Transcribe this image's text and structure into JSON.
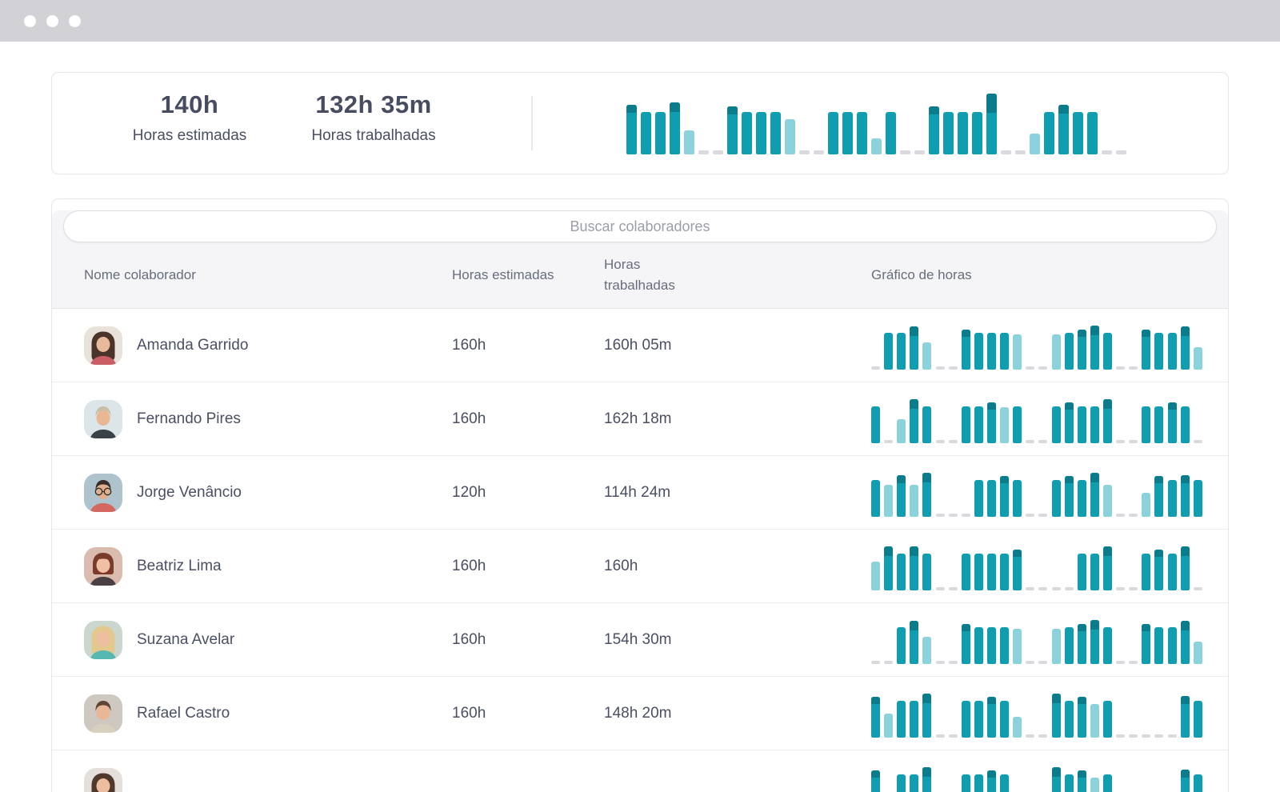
{
  "window": {
    "dot_count": 3
  },
  "colors": {
    "teal": "#0E9EB0",
    "dark": "#0A7C8C",
    "light": "#8CD2DC",
    "dash": "#D9D9DE"
  },
  "summary": {
    "stats": [
      {
        "value": "140h",
        "label": "Horas estimadas"
      },
      {
        "value": "132h 35m",
        "label": "Horas trabalhadas"
      }
    ],
    "chart": {
      "type": "bar",
      "bars": [
        [
          "o",
          62,
          10
        ],
        [
          "n",
          53
        ],
        [
          "n",
          53
        ],
        [
          "o",
          65,
          12
        ],
        [
          "l",
          30
        ],
        [
          "d"
        ],
        [
          "d"
        ],
        [
          "o",
          60,
          10
        ],
        [
          "n",
          53
        ],
        [
          "n",
          53
        ],
        [
          "n",
          53
        ],
        [
          "l",
          44
        ],
        [
          "d"
        ],
        [
          "d"
        ],
        [
          "n",
          53
        ],
        [
          "n",
          53
        ],
        [
          "n",
          53
        ],
        [
          "l",
          20
        ],
        [
          "n",
          53
        ],
        [
          "d"
        ],
        [
          "d"
        ],
        [
          "o",
          60,
          10
        ],
        [
          "n",
          53
        ],
        [
          "n",
          53
        ],
        [
          "n",
          53
        ],
        [
          "o",
          76,
          24
        ],
        [
          "d"
        ],
        [
          "d"
        ],
        [
          "l",
          26
        ],
        [
          "n",
          53
        ],
        [
          "o",
          62,
          11
        ],
        [
          "n",
          53
        ],
        [
          "n",
          53
        ],
        [
          "d"
        ],
        [
          "d"
        ]
      ]
    }
  },
  "search": {
    "placeholder": "Buscar colaboradores"
  },
  "table": {
    "columns": [
      "Nome colaborador",
      "Horas estimadas",
      "Horas trabalhadas",
      "Gráfico de horas"
    ],
    "rows": [
      {
        "name": "Amanda Garrido",
        "estimated": "160h",
        "worked": "160h 05m",
        "avatar": {
          "bg": "#E9E2DB",
          "hair": "#4A3328",
          "skin": "#E8B99B",
          "shirt": "#C95E66",
          "style": "long",
          "glasses": false
        },
        "chart": [
          [
            "d"
          ],
          [
            "n",
            46
          ],
          [
            "n",
            46
          ],
          [
            "o",
            54,
            12
          ],
          [
            "l",
            34
          ],
          [
            "d"
          ],
          [
            "d"
          ],
          [
            "o",
            50,
            9
          ],
          [
            "n",
            46
          ],
          [
            "n",
            46
          ],
          [
            "n",
            46
          ],
          [
            "l",
            44
          ],
          [
            "d"
          ],
          [
            "d"
          ],
          [
            "l",
            44
          ],
          [
            "n",
            46
          ],
          [
            "o",
            50,
            9
          ],
          [
            "o",
            55,
            12
          ],
          [
            "n",
            46
          ],
          [
            "d"
          ],
          [
            "d"
          ],
          [
            "o",
            50,
            9
          ],
          [
            "n",
            46
          ],
          [
            "n",
            46
          ],
          [
            "o",
            54,
            12
          ],
          [
            "l",
            28
          ]
        ]
      },
      {
        "name": "Fernando Pires",
        "estimated": "160h",
        "worked": "162h 18m",
        "avatar": {
          "bg": "#DCE6E8",
          "hair": "#C9BFA8",
          "skin": "#E9B793",
          "shirt": "#3A4149",
          "style": "short",
          "glasses": false
        },
        "chart": [
          [
            "n",
            46
          ],
          [
            "d"
          ],
          [
            "l",
            30
          ],
          [
            "o",
            55,
            12
          ],
          [
            "n",
            46
          ],
          [
            "d"
          ],
          [
            "d"
          ],
          [
            "n",
            46
          ],
          [
            "n",
            46
          ],
          [
            "o",
            51,
            9
          ],
          [
            "l",
            45
          ],
          [
            "n",
            46
          ],
          [
            "d"
          ],
          [
            "d"
          ],
          [
            "n",
            46
          ],
          [
            "o",
            51,
            9
          ],
          [
            "n",
            46
          ],
          [
            "n",
            46
          ],
          [
            "o",
            55,
            12
          ],
          [
            "d"
          ],
          [
            "d"
          ],
          [
            "n",
            46
          ],
          [
            "n",
            46
          ],
          [
            "o",
            51,
            9
          ],
          [
            "n",
            46
          ],
          [
            "d"
          ]
        ]
      },
      {
        "name": "Jorge Venâncio",
        "estimated": "120h",
        "worked": "114h 24m",
        "avatar": {
          "bg": "#AFC3CD",
          "hair": "#3A2E28",
          "skin": "#E3AE8C",
          "shirt": "#D2685E",
          "style": "short",
          "glasses": true
        },
        "chart": [
          [
            "n",
            46
          ],
          [
            "l",
            40
          ],
          [
            "o",
            52,
            10
          ],
          [
            "l",
            40
          ],
          [
            "o",
            55,
            12
          ],
          [
            "d"
          ],
          [
            "d"
          ],
          [
            "d"
          ],
          [
            "n",
            46
          ],
          [
            "n",
            46
          ],
          [
            "o",
            51,
            9
          ],
          [
            "n",
            46
          ],
          [
            "d"
          ],
          [
            "d"
          ],
          [
            "n",
            46
          ],
          [
            "o",
            51,
            9
          ],
          [
            "n",
            46
          ],
          [
            "o",
            55,
            12
          ],
          [
            "l",
            40
          ],
          [
            "d"
          ],
          [
            "d"
          ],
          [
            "l",
            30
          ],
          [
            "o",
            51,
            9
          ],
          [
            "n",
            46
          ],
          [
            "o",
            52,
            10
          ],
          [
            "n",
            46
          ]
        ]
      },
      {
        "name": "Beatriz Lima",
        "estimated": "160h",
        "worked": "160h",
        "avatar": {
          "bg": "#D9BCAD",
          "hair": "#7A3B2B",
          "skin": "#EFC0A2",
          "shirt": "#4A3F43",
          "style": "bangs",
          "glasses": false
        },
        "chart": [
          [
            "l",
            36
          ],
          [
            "o",
            55,
            12
          ],
          [
            "n",
            46
          ],
          [
            "o",
            55,
            12
          ],
          [
            "n",
            46
          ],
          [
            "d"
          ],
          [
            "d"
          ],
          [
            "n",
            46
          ],
          [
            "n",
            46
          ],
          [
            "n",
            46
          ],
          [
            "n",
            46
          ],
          [
            "o",
            51,
            9
          ],
          [
            "d"
          ],
          [
            "d"
          ],
          [
            "d"
          ],
          [
            "d"
          ],
          [
            "n",
            46
          ],
          [
            "n",
            46
          ],
          [
            "o",
            55,
            12
          ],
          [
            "d"
          ],
          [
            "d"
          ],
          [
            "n",
            46
          ],
          [
            "o",
            51,
            9
          ],
          [
            "n",
            46
          ],
          [
            "o",
            55,
            12
          ],
          [
            "d"
          ]
        ]
      },
      {
        "name": "Suzana Avelar",
        "estimated": "160h",
        "worked": "154h 30m",
        "avatar": {
          "bg": "#CBD6CE",
          "hair": "#E3C98E",
          "skin": "#EDBEA0",
          "shirt": "#57B8B2",
          "style": "long",
          "glasses": false
        },
        "chart": [
          [
            "d"
          ],
          [
            "d"
          ],
          [
            "n",
            46
          ],
          [
            "o",
            54,
            12
          ],
          [
            "l",
            34
          ],
          [
            "d"
          ],
          [
            "d"
          ],
          [
            "o",
            50,
            9
          ],
          [
            "n",
            46
          ],
          [
            "n",
            46
          ],
          [
            "n",
            46
          ],
          [
            "l",
            44
          ],
          [
            "d"
          ],
          [
            "d"
          ],
          [
            "l",
            44
          ],
          [
            "n",
            46
          ],
          [
            "o",
            50,
            9
          ],
          [
            "o",
            55,
            12
          ],
          [
            "n",
            46
          ],
          [
            "d"
          ],
          [
            "d"
          ],
          [
            "o",
            50,
            9
          ],
          [
            "n",
            46
          ],
          [
            "n",
            46
          ],
          [
            "o",
            54,
            12
          ],
          [
            "l",
            28
          ]
        ]
      },
      {
        "name": "Rafael Castro",
        "estimated": "160h",
        "worked": "148h 20m",
        "avatar": {
          "bg": "#CEC8C0",
          "hair": "#5E4632",
          "skin": "#E9B795",
          "shirt": "#D9CFBE",
          "style": "short",
          "glasses": false
        },
        "chart": [
          [
            "o",
            51,
            9
          ],
          [
            "l",
            30
          ],
          [
            "n",
            46
          ],
          [
            "n",
            46
          ],
          [
            "o",
            55,
            12
          ],
          [
            "d"
          ],
          [
            "d"
          ],
          [
            "n",
            46
          ],
          [
            "n",
            46
          ],
          [
            "o",
            51,
            9
          ],
          [
            "n",
            46
          ],
          [
            "l",
            26
          ],
          [
            "d"
          ],
          [
            "d"
          ],
          [
            "o",
            55,
            12
          ],
          [
            "n",
            46
          ],
          [
            "o",
            51,
            9
          ],
          [
            "l",
            42
          ],
          [
            "n",
            46
          ],
          [
            "d"
          ],
          [
            "d"
          ],
          [
            "d"
          ],
          [
            "d"
          ],
          [
            "d"
          ],
          [
            "o",
            52,
            10
          ],
          [
            "n",
            46
          ]
        ]
      },
      {
        "name": "",
        "estimated": "",
        "worked": "",
        "avatar": {
          "bg": "#E4DFDA",
          "hair": "#4F382C",
          "skin": "#EDBD9F",
          "shirt": "#8A8A90",
          "style": "long",
          "glasses": false
        },
        "chart": [
          [
            "o",
            51,
            9
          ],
          [
            "d"
          ],
          [
            "n",
            46
          ],
          [
            "n",
            46
          ],
          [
            "o",
            55,
            12
          ],
          [
            "d"
          ],
          [
            "d"
          ],
          [
            "n",
            46
          ],
          [
            "n",
            46
          ],
          [
            "o",
            51,
            9
          ],
          [
            "n",
            46
          ],
          [
            "d"
          ],
          [
            "d"
          ],
          [
            "d"
          ],
          [
            "o",
            55,
            12
          ],
          [
            "n",
            46
          ],
          [
            "o",
            51,
            9
          ],
          [
            "l",
            42
          ],
          [
            "n",
            46
          ],
          [
            "d"
          ],
          [
            "d"
          ],
          [
            "d"
          ],
          [
            "d"
          ],
          [
            "d"
          ],
          [
            "o",
            52,
            10
          ],
          [
            "n",
            46
          ]
        ]
      }
    ]
  }
}
